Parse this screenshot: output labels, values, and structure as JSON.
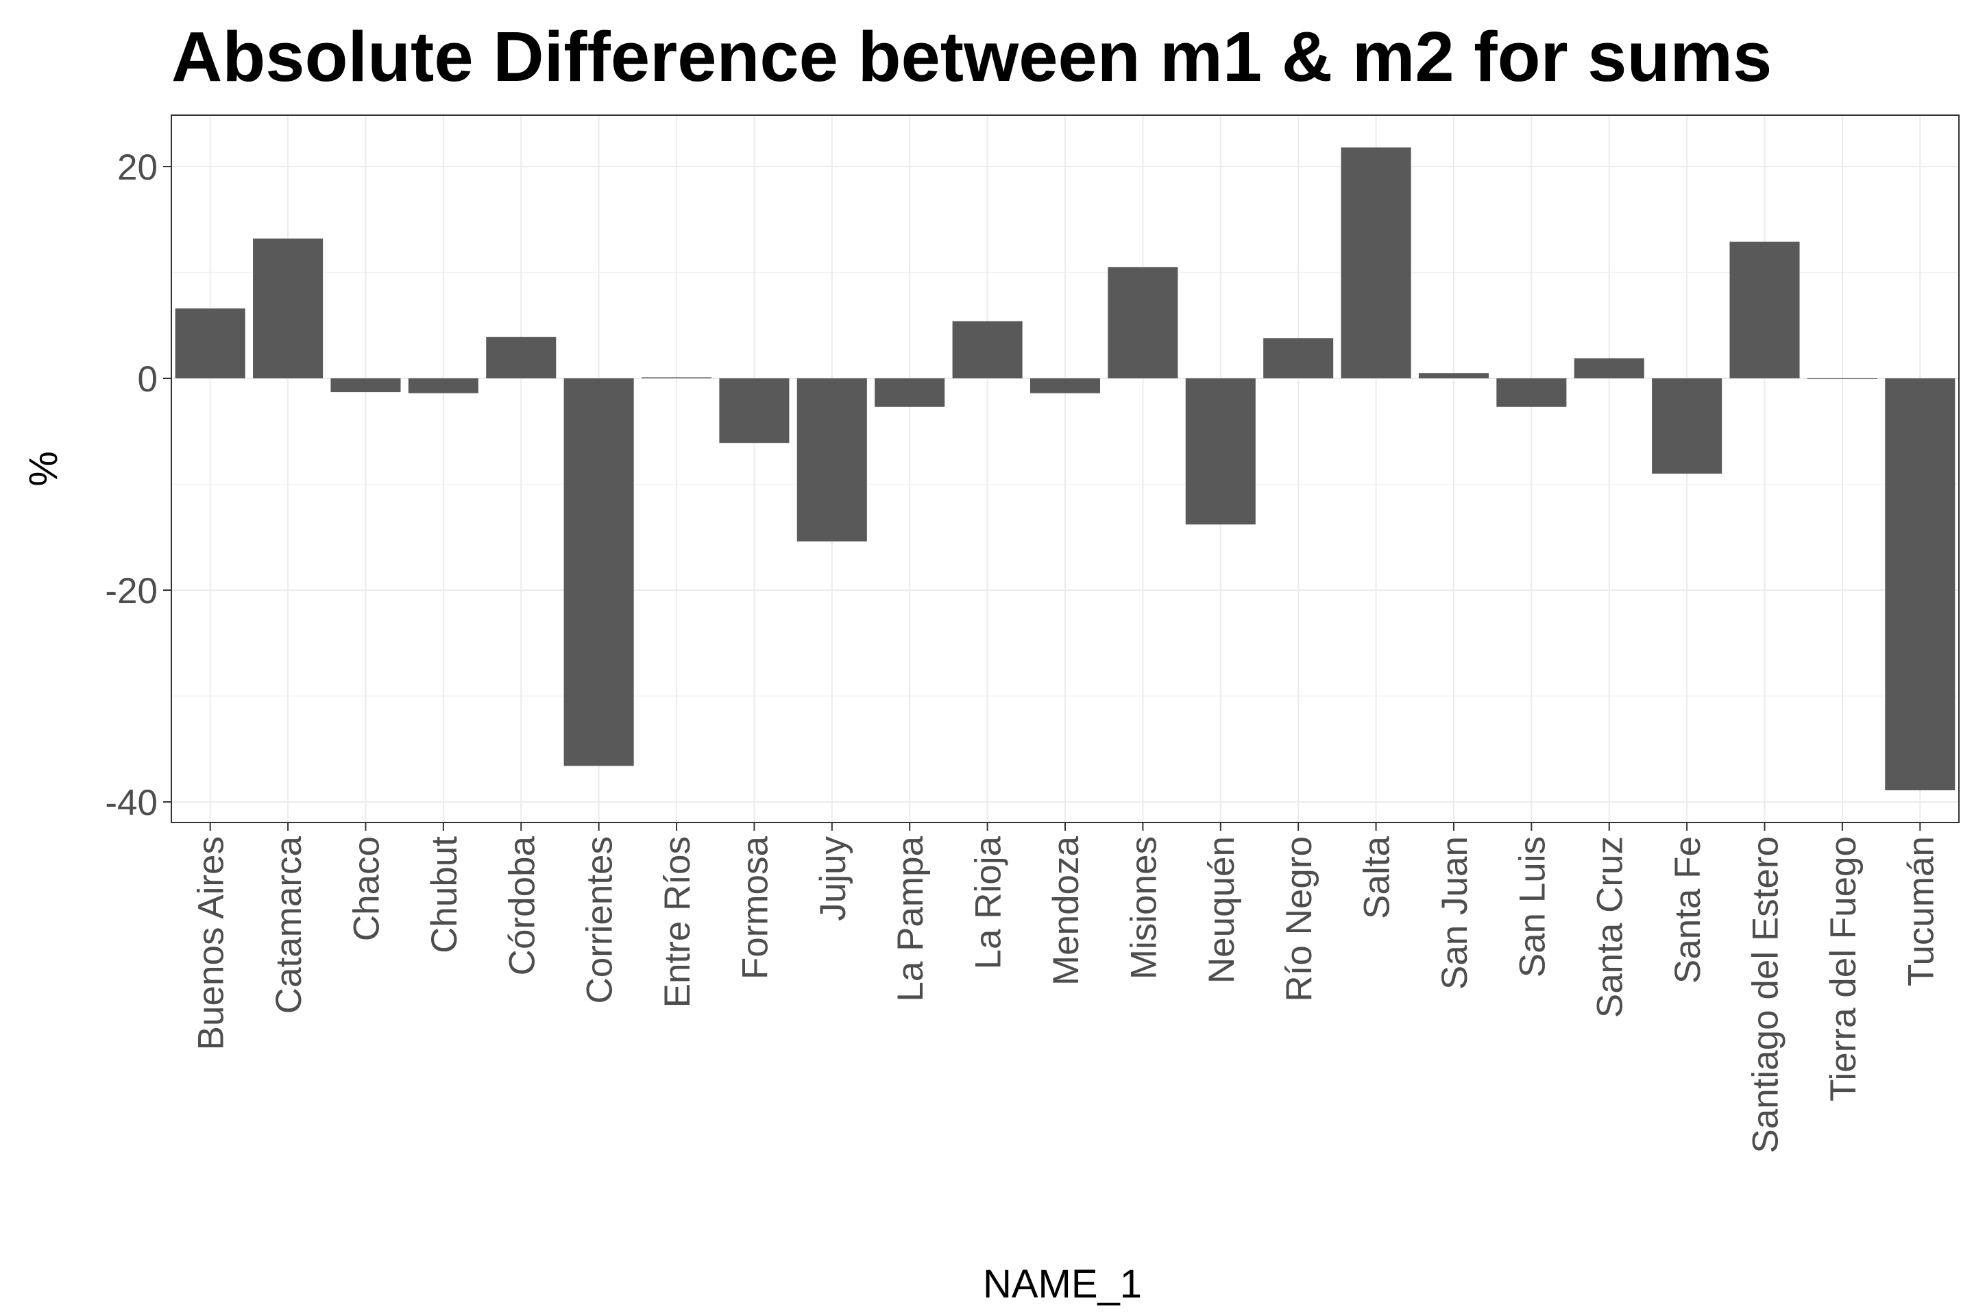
{
  "chart_data": {
    "type": "bar",
    "title": "Absolute Difference between m1 & m2 for sums",
    "xlabel": "NAME_1",
    "ylabel": "%",
    "ylim": [
      -42,
      25
    ],
    "yticks": [
      20,
      0,
      -20,
      -40
    ],
    "ytick_labels": [
      "20",
      "0",
      "-20",
      "-40"
    ],
    "categories": [
      "Buenos Aires",
      "Catamarca",
      "Chaco",
      "Chubut",
      "Córdoba",
      "Corrientes",
      "Entre Ríos",
      "Formosa",
      "Jujuy",
      "La Pampa",
      "La Rioja",
      "Mendoza",
      "Misiones",
      "Neuquén",
      "Río Negro",
      "Salta",
      "San Juan",
      "San Luis",
      "Santa Cruz",
      "Santa Fe",
      "Santiago del Estero",
      "Tierra del Fuego",
      "Tucumán"
    ],
    "values": [
      6.6,
      13.2,
      -1.3,
      -1.4,
      3.9,
      -36.6,
      0.1,
      -6.1,
      -15.4,
      -2.7,
      5.4,
      -1.4,
      10.5,
      -13.8,
      3.8,
      21.8,
      0.5,
      -2.7,
      1.9,
      -9.0,
      12.9,
      0.0,
      -38.9
    ],
    "bar_color": "#595959",
    "grid": true,
    "legend": "none"
  }
}
